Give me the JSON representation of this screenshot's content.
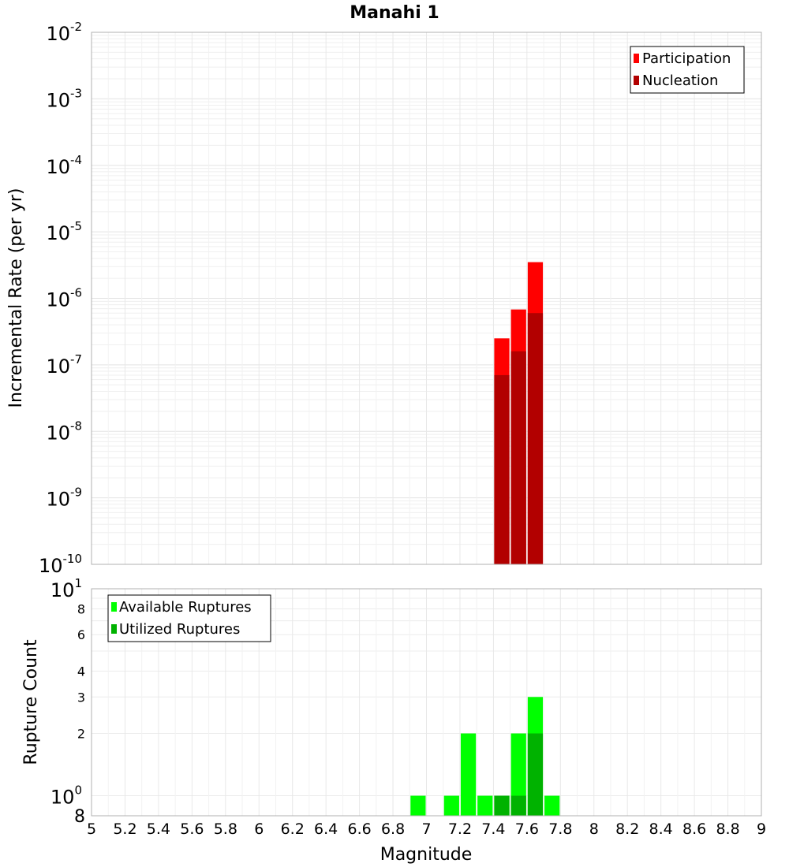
{
  "chart_data": [
    {
      "type": "bar",
      "title": "Manahi 1",
      "xlabel": "",
      "ylabel": "Incremental Rate (per yr)",
      "yscale": "log",
      "xlim": [
        5,
        9
      ],
      "ylim": [
        1e-10,
        0.01
      ],
      "grid": true,
      "legend_position": "top-right",
      "bin_width": 0.1,
      "y_ticks": [
        {
          "base": "10",
          "exp": "-2"
        },
        {
          "base": "10",
          "exp": "-3"
        },
        {
          "base": "10",
          "exp": "-4"
        },
        {
          "base": "10",
          "exp": "-5"
        },
        {
          "base": "10",
          "exp": "-6"
        },
        {
          "base": "10",
          "exp": "-7"
        },
        {
          "base": "10",
          "exp": "-8"
        },
        {
          "base": "10",
          "exp": "-9"
        },
        {
          "base": "10",
          "exp": "-10"
        }
      ],
      "series": [
        {
          "name": "Participation",
          "color": "#ff0000",
          "x": [
            7.45,
            7.55,
            7.65
          ],
          "values": [
            2.5e-07,
            6.8e-07,
            3.5e-06
          ]
        },
        {
          "name": "Nucleation",
          "color": "#b20000",
          "x": [
            7.45,
            7.55,
            7.65
          ],
          "values": [
            7e-08,
            1.6e-07,
            6e-07
          ]
        }
      ]
    },
    {
      "type": "bar",
      "title": "",
      "xlabel": "Magnitude",
      "ylabel": "Rupture Count",
      "yscale": "log",
      "xlim": [
        5,
        9
      ],
      "ylim": [
        0.8,
        10
      ],
      "grid": true,
      "legend_position": "top-left",
      "bin_width": 0.1,
      "x_ticks": [
        "5",
        "5.2",
        "5.4",
        "5.6",
        "5.8",
        "6",
        "6.2",
        "6.4",
        "6.6",
        "6.8",
        "7",
        "7.2",
        "7.4",
        "7.6",
        "7.8",
        "8",
        "8.2",
        "8.4",
        "8.6",
        "8.8",
        "9"
      ],
      "y_ticks_major": [
        {
          "value": 10,
          "base": "10",
          "exp": "1"
        },
        {
          "value": 1,
          "base": "10",
          "exp": "0"
        }
      ],
      "y_ticks_minor": [
        {
          "value": 8,
          "label": "8"
        },
        {
          "value": 6,
          "label": "6"
        },
        {
          "value": 4,
          "label": "4"
        },
        {
          "value": 3,
          "label": "3"
        },
        {
          "value": 2,
          "label": "2"
        }
      ],
      "y_bottom_label": "8",
      "series": [
        {
          "name": "Available Ruptures",
          "color": "#00ff00",
          "x": [
            6.95,
            7.15,
            7.25,
            7.35,
            7.45,
            7.55,
            7.65,
            7.75
          ],
          "values": [
            1,
            1,
            2,
            1,
            1,
            2,
            3,
            1
          ]
        },
        {
          "name": "Utilized Ruptures",
          "color": "#00b200",
          "x": [
            7.45,
            7.55,
            7.65
          ],
          "values": [
            1,
            1,
            2
          ]
        }
      ]
    }
  ]
}
